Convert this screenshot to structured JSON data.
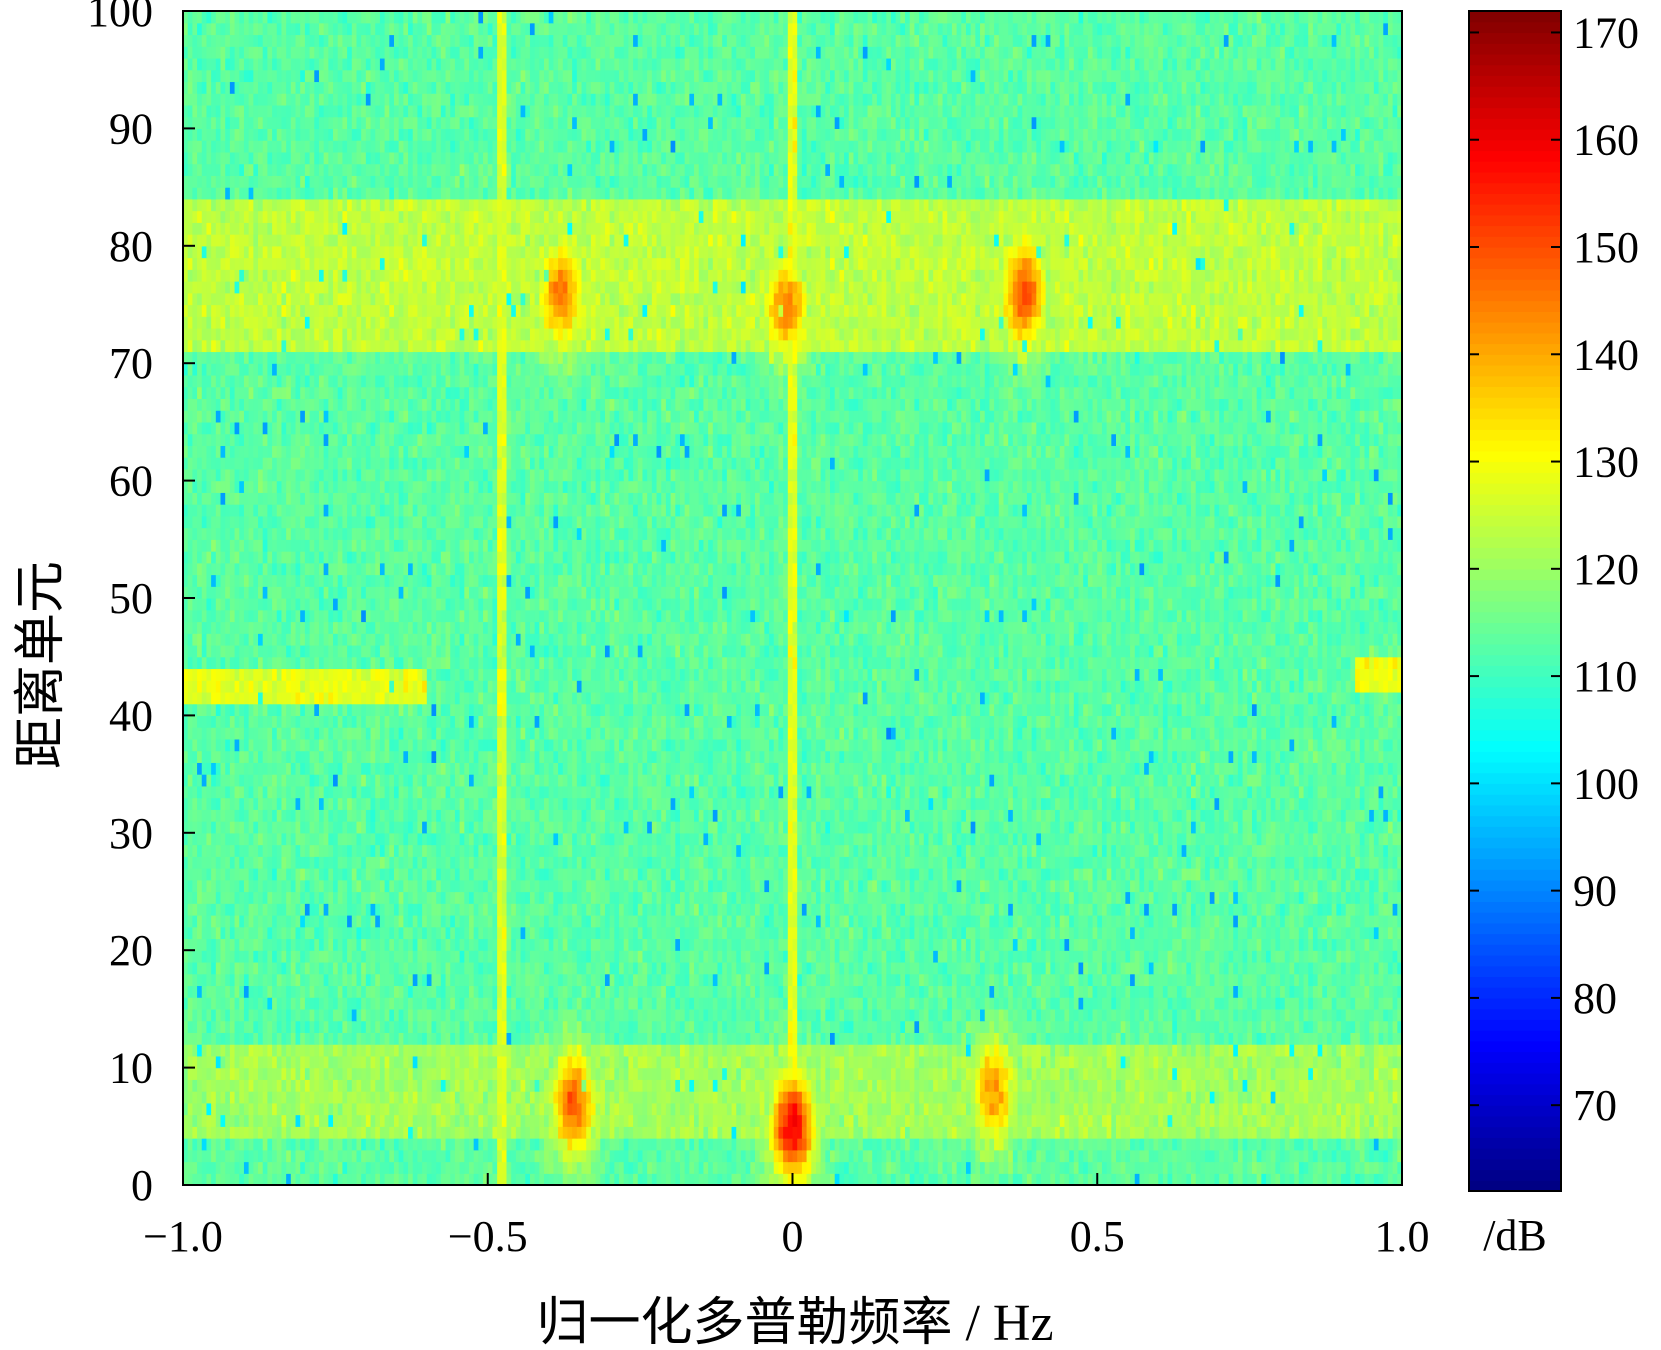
{
  "chart_data": {
    "type": "heatmap",
    "title": "",
    "xlabel": "归一化多普勒频率 / Hz",
    "ylabel": "距离单元",
    "colorbar_label": "/dB",
    "xlim": [
      -1.0,
      1.0
    ],
    "ylim": [
      0,
      100
    ],
    "clim": [
      62,
      172
    ],
    "colormap": "jet",
    "x_ticks": [
      -1.0,
      -0.5,
      0,
      0.5,
      1.0
    ],
    "x_tick_labels": [
      "−1.0",
      "−0.5",
      "0",
      "0.5",
      "1.0"
    ],
    "y_ticks": [
      0,
      10,
      20,
      30,
      40,
      50,
      60,
      70,
      80,
      90,
      100
    ],
    "y_tick_labels": [
      "0",
      "10",
      "20",
      "30",
      "40",
      "50",
      "60",
      "70",
      "80",
      "90",
      "100"
    ],
    "colorbar_ticks": [
      70,
      80,
      90,
      100,
      110,
      120,
      130,
      140,
      150,
      160,
      170
    ],
    "colorbar_tick_labels": [
      "70",
      "80",
      "90",
      "100",
      "110",
      "120",
      "130",
      "140",
      "150",
      "160",
      "170"
    ],
    "background_level_db": 113,
    "features": [
      {
        "kind": "range_band",
        "y_from": 71,
        "y_to": 84,
        "level_db": 124
      },
      {
        "kind": "range_band",
        "y_from": 4,
        "y_to": 12,
        "level_db": 121
      },
      {
        "kind": "range_band",
        "y_from": 41,
        "y_to": 44,
        "x_from": -1.0,
        "x_to": -0.6,
        "level_db": 128
      },
      {
        "kind": "range_band",
        "y_from": 42,
        "y_to": 45,
        "x_from": 0.92,
        "x_to": 1.0,
        "level_db": 129
      },
      {
        "kind": "doppler_line",
        "x": -0.48,
        "level_db": 127
      },
      {
        "kind": "doppler_line",
        "x": 0.0,
        "level_db": 128
      },
      {
        "kind": "target",
        "x": -0.38,
        "y": 76,
        "peak_db": 146
      },
      {
        "kind": "target",
        "x": 0.38,
        "y": 76,
        "peak_db": 152
      },
      {
        "kind": "target",
        "x": -0.01,
        "y": 75,
        "peak_db": 145
      },
      {
        "kind": "target",
        "x": -0.36,
        "y": 7,
        "peak_db": 148
      },
      {
        "kind": "target",
        "x": 0.0,
        "y": 5,
        "peak_db": 160
      },
      {
        "kind": "target",
        "x": 0.33,
        "y": 8,
        "peak_db": 142
      }
    ]
  }
}
